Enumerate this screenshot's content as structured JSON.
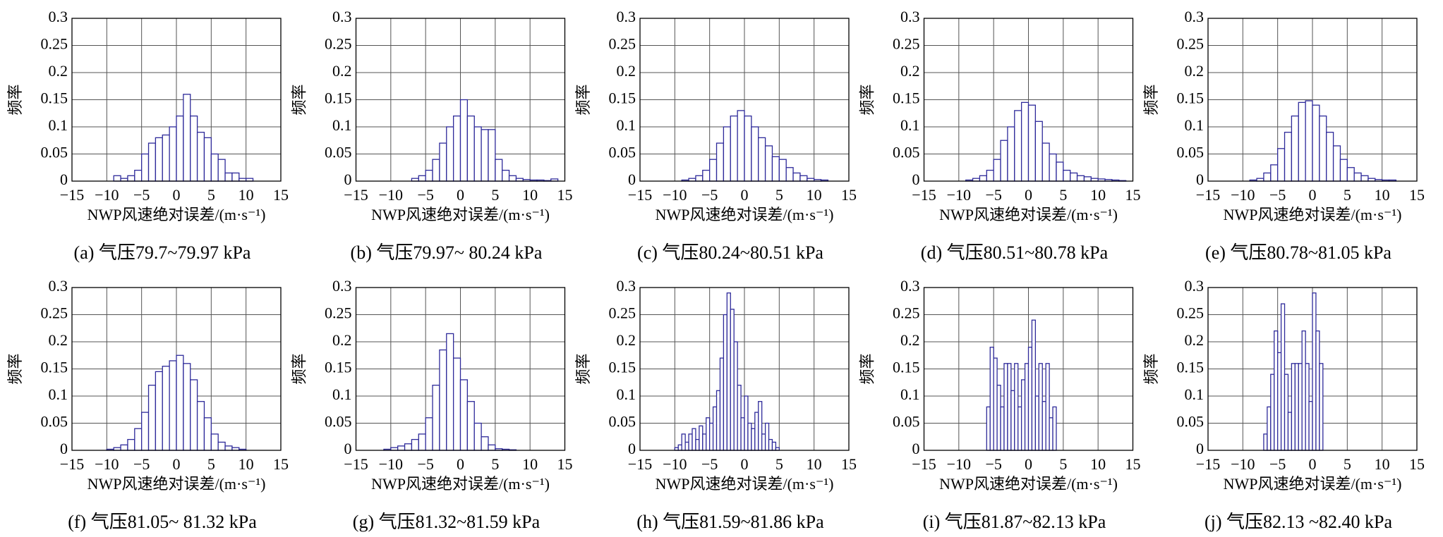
{
  "chart_data": [
    {
      "type": "histogram",
      "title": "(a) 气压79.7~79.97 kPa",
      "xlabel": "NWP风速绝对误差/(m·s⁻¹)",
      "ylabel": "频率",
      "color": "#2e2a9a",
      "grid": true,
      "xlim": [
        -15,
        15
      ],
      "ylim": [
        0,
        0.3
      ],
      "xticks": [
        {
          "value": -15,
          "label": "−15"
        },
        {
          "value": -10,
          "label": "−10"
        },
        {
          "value": -5,
          "label": "−5"
        },
        0,
        5,
        10,
        15
      ],
      "yticks": [
        0,
        0.05,
        0.1,
        0.15,
        0.2,
        0.25,
        0.3
      ],
      "bins": [
        -9,
        -8,
        -7,
        -6,
        -5,
        -4,
        -3,
        -2,
        -1,
        0,
        1,
        2,
        3,
        4,
        5,
        6,
        7,
        8,
        9,
        10,
        11
      ],
      "values": [
        0.01,
        0.005,
        0.01,
        0.02,
        0.05,
        0.07,
        0.08,
        0.085,
        0.1,
        0.12,
        0.16,
        0.12,
        0.09,
        0.08,
        0.05,
        0.04,
        0.015,
        0.015,
        0.005,
        0.005
      ]
    },
    {
      "type": "histogram",
      "title": "(b) 气压79.97~ 80.24 kPa",
      "xlabel": "NWP风速绝对误差/(m·s⁻¹)",
      "ylabel": "频率",
      "color": "#2e2a9a",
      "grid": true,
      "xlim": [
        -15,
        15
      ],
      "ylim": [
        0,
        0.3
      ],
      "xticks": [
        {
          "value": -15,
          "label": "−15"
        },
        {
          "value": -10,
          "label": "−10"
        },
        {
          "value": -5,
          "label": "−5"
        },
        0,
        5,
        10,
        15
      ],
      "yticks": [
        0,
        0.05,
        0.1,
        0.15,
        0.2,
        0.25,
        0.3
      ],
      "bins": [
        -7,
        -6,
        -5,
        -4,
        -3,
        -2,
        -1,
        0,
        1,
        2,
        3,
        4,
        5,
        6,
        7,
        8,
        9,
        10,
        11,
        12,
        13,
        14
      ],
      "values": [
        0.005,
        0.01,
        0.02,
        0.04,
        0.07,
        0.1,
        0.12,
        0.15,
        0.12,
        0.1,
        0.095,
        0.095,
        0.04,
        0.02,
        0.01,
        0.005,
        0.003,
        0.002,
        0.002,
        0.001,
        0.004
      ]
    },
    {
      "type": "histogram",
      "title": "(c) 气压80.24~80.51 kPa",
      "xlabel": "NWP风速绝对误差/(m·s⁻¹)",
      "ylabel": "频率",
      "color": "#2e2a9a",
      "grid": true,
      "xlim": [
        -15,
        15
      ],
      "ylim": [
        0,
        0.3
      ],
      "xticks": [
        {
          "value": -15,
          "label": "−15"
        },
        {
          "value": -10,
          "label": "−10"
        },
        {
          "value": -5,
          "label": "−5"
        },
        0,
        5,
        10,
        15
      ],
      "yticks": [
        0,
        0.05,
        0.1,
        0.15,
        0.2,
        0.25,
        0.3
      ],
      "bins": [
        -9,
        -8,
        -7,
        -6,
        -5,
        -4,
        -3,
        -2,
        -1,
        0,
        1,
        2,
        3,
        4,
        5,
        6,
        7,
        8,
        9,
        10,
        11,
        12
      ],
      "values": [
        0.002,
        0.005,
        0.01,
        0.02,
        0.04,
        0.07,
        0.1,
        0.12,
        0.13,
        0.12,
        0.1,
        0.08,
        0.065,
        0.045,
        0.04,
        0.025,
        0.015,
        0.01,
        0.005,
        0.003,
        0.002
      ]
    },
    {
      "type": "histogram",
      "title": "(d) 气压80.51~80.78 kPa",
      "xlabel": "NWP风速绝对误差/(m·s⁻¹)",
      "ylabel": "频率",
      "color": "#2e2a9a",
      "grid": true,
      "xlim": [
        -15,
        15
      ],
      "ylim": [
        0,
        0.3
      ],
      "xticks": [
        {
          "value": -15,
          "label": "−15"
        },
        {
          "value": -10,
          "label": "−10"
        },
        {
          "value": -5,
          "label": "−5"
        },
        0,
        5,
        10,
        15
      ],
      "yticks": [
        0,
        0.05,
        0.1,
        0.15,
        0.2,
        0.25,
        0.3
      ],
      "bins": [
        -9,
        -8,
        -7,
        -6,
        -5,
        -4,
        -3,
        -2,
        -1,
        0,
        1,
        2,
        3,
        4,
        5,
        6,
        7,
        8,
        9,
        10,
        11,
        12,
        13,
        14
      ],
      "values": [
        0.002,
        0.005,
        0.01,
        0.02,
        0.04,
        0.075,
        0.1,
        0.13,
        0.145,
        0.14,
        0.11,
        0.07,
        0.05,
        0.035,
        0.02,
        0.015,
        0.01,
        0.008,
        0.005,
        0.004,
        0.003,
        0.002,
        0.001
      ]
    },
    {
      "type": "histogram",
      "title": "(e) 气压80.78~81.05 kPa",
      "xlabel": "NWP风速绝对误差/(m·s⁻¹)",
      "ylabel": "频率",
      "color": "#2e2a9a",
      "grid": true,
      "xlim": [
        -15,
        15
      ],
      "ylim": [
        0,
        0.3
      ],
      "xticks": [
        {
          "value": -15,
          "label": "−15"
        },
        {
          "value": -10,
          "label": "−10"
        },
        {
          "value": -5,
          "label": "−5"
        },
        0,
        5,
        10,
        15
      ],
      "yticks": [
        0,
        0.05,
        0.1,
        0.15,
        0.2,
        0.25,
        0.3
      ],
      "bins": [
        -9,
        -8,
        -7,
        -6,
        -5,
        -4,
        -3,
        -2,
        -1,
        0,
        1,
        2,
        3,
        4,
        5,
        6,
        7,
        8,
        9,
        10,
        11,
        12
      ],
      "values": [
        0.002,
        0.005,
        0.015,
        0.03,
        0.06,
        0.09,
        0.12,
        0.145,
        0.148,
        0.14,
        0.12,
        0.09,
        0.065,
        0.04,
        0.025,
        0.015,
        0.01,
        0.005,
        0.003,
        0.002,
        0.002
      ]
    },
    {
      "type": "histogram",
      "title": "(f) 气压81.05~ 81.32 kPa",
      "xlabel": "NWP风速绝对误差/(m·s⁻¹)",
      "ylabel": "频率",
      "color": "#2e2a9a",
      "grid": true,
      "xlim": [
        -15,
        15
      ],
      "ylim": [
        0,
        0.3
      ],
      "xticks": [
        {
          "value": -15,
          "label": "−15"
        },
        {
          "value": -10,
          "label": "−10"
        },
        {
          "value": -5,
          "label": "−5"
        },
        0,
        5,
        10,
        15
      ],
      "yticks": [
        0,
        0.05,
        0.1,
        0.15,
        0.2,
        0.25,
        0.3
      ],
      "bins": [
        -10,
        -9,
        -8,
        -7,
        -6,
        -5,
        -4,
        -3,
        -2,
        -1,
        0,
        1,
        2,
        3,
        4,
        5,
        6,
        7,
        8,
        9,
        10
      ],
      "values": [
        0.002,
        0.005,
        0.01,
        0.02,
        0.04,
        0.07,
        0.12,
        0.145,
        0.155,
        0.165,
        0.175,
        0.16,
        0.13,
        0.09,
        0.06,
        0.03,
        0.015,
        0.008,
        0.005,
        0.002
      ]
    },
    {
      "type": "histogram",
      "title": "(g) 气压81.32~81.59 kPa",
      "xlabel": "NWP风速绝对误差/(m·s⁻¹)",
      "ylabel": "频率",
      "color": "#2e2a9a",
      "grid": true,
      "xlim": [
        -15,
        15
      ],
      "ylim": [
        0,
        0.3
      ],
      "xticks": [
        {
          "value": -15,
          "label": "−15"
        },
        {
          "value": -10,
          "label": "−10"
        },
        {
          "value": -5,
          "label": "−5"
        },
        0,
        5,
        10,
        15
      ],
      "yticks": [
        0,
        0.05,
        0.1,
        0.15,
        0.2,
        0.25,
        0.3
      ],
      "bins": [
        -11,
        -10,
        -9,
        -8,
        -7,
        -6,
        -5,
        -4,
        -3,
        -2,
        -1,
        0,
        1,
        2,
        3,
        4,
        5,
        6,
        7,
        8
      ],
      "values": [
        0.002,
        0.005,
        0.008,
        0.012,
        0.02,
        0.03,
        0.06,
        0.12,
        0.185,
        0.215,
        0.17,
        0.13,
        0.09,
        0.05,
        0.025,
        0.01,
        0.003,
        0.002,
        0.001
      ]
    },
    {
      "type": "histogram",
      "title": "(h) 气压81.59~81.86 kPa",
      "xlabel": "NWP风速绝对误差/(m·s⁻¹)",
      "ylabel": "频率",
      "color": "#2e2a9a",
      "grid": true,
      "xlim": [
        -15,
        15
      ],
      "ylim": [
        0,
        0.3
      ],
      "xticks": [
        {
          "value": -15,
          "label": "−15"
        },
        {
          "value": -10,
          "label": "−10"
        },
        {
          "value": -5,
          "label": "−5"
        },
        0,
        5,
        10,
        15
      ],
      "yticks": [
        0,
        0.05,
        0.1,
        0.15,
        0.2,
        0.25,
        0.3
      ],
      "bins": [
        -10,
        -9.5,
        -9,
        -8.5,
        -8,
        -7.5,
        -7,
        -6.5,
        -6,
        -5.5,
        -5,
        -4.5,
        -4,
        -3.5,
        -3,
        -2.5,
        -2,
        -1.5,
        -1,
        -0.5,
        0,
        0.5,
        1,
        1.5,
        2,
        2.5,
        3,
        3.5,
        4,
        4.5,
        5
      ],
      "values": [
        0.005,
        0.01,
        0.03,
        0.015,
        0.03,
        0.04,
        0.02,
        0.045,
        0.03,
        0.06,
        0.05,
        0.08,
        0.11,
        0.17,
        0.25,
        0.29,
        0.26,
        0.2,
        0.12,
        0.06,
        0.1,
        0.05,
        0.04,
        0.07,
        0.09,
        0.03,
        0.05,
        0.02,
        0.015,
        0.005
      ]
    },
    {
      "type": "histogram",
      "title": "(i) 气压81.87~82.13 kPa",
      "xlabel": "NWP风速绝对误差/(m·s⁻¹)",
      "ylabel": "频率",
      "color": "#2e2a9a",
      "grid": true,
      "xlim": [
        -15,
        15
      ],
      "ylim": [
        0,
        0.3
      ],
      "xticks": [
        {
          "value": -15,
          "label": "−15"
        },
        {
          "value": -10,
          "label": "−10"
        },
        {
          "value": -5,
          "label": "−5"
        },
        0,
        5,
        10,
        15
      ],
      "yticks": [
        0,
        0.05,
        0.1,
        0.15,
        0.2,
        0.25,
        0.3
      ],
      "bins": [
        -6,
        -5.5,
        -5,
        -4.5,
        -4,
        -3.5,
        -3,
        -2.5,
        -2,
        -1.5,
        -1,
        -0.5,
        0,
        0.5,
        1,
        1.5,
        2,
        2.5,
        3,
        3.5,
        4
      ],
      "values": [
        0.08,
        0.19,
        0.17,
        0.12,
        0.08,
        0.16,
        0.16,
        0.11,
        0.16,
        0.08,
        0.13,
        0.16,
        0.19,
        0.24,
        0.1,
        0.16,
        0.09,
        0.16,
        0.06,
        0.08
      ]
    },
    {
      "type": "histogram",
      "title": "(j) 气压82.13 ~82.40 kPa",
      "xlabel": "NWP风速绝对误差/(m·s⁻¹)",
      "ylabel": "频率",
      "color": "#2e2a9a",
      "grid": true,
      "xlim": [
        -15,
        15
      ],
      "ylim": [
        0,
        0.3
      ],
      "xticks": [
        {
          "value": -15,
          "label": "−15"
        },
        {
          "value": -10,
          "label": "−10"
        },
        {
          "value": -5,
          "label": "−5"
        },
        0,
        5,
        10,
        15
      ],
      "yticks": [
        0,
        0.05,
        0.1,
        0.15,
        0.2,
        0.25,
        0.3
      ],
      "bins": [
        -7,
        -6.5,
        -6,
        -5.5,
        -5,
        -4.5,
        -4,
        -3.5,
        -3,
        -2.5,
        -2,
        -1.5,
        -1,
        -0.5,
        0,
        0.5,
        1,
        1.5
      ],
      "values": [
        0.03,
        0.08,
        0.14,
        0.22,
        0.18,
        0.27,
        0.14,
        0.07,
        0.16,
        0.16,
        0.16,
        0.22,
        0.16,
        0.09,
        0.29,
        0.22,
        0.16
      ]
    }
  ]
}
